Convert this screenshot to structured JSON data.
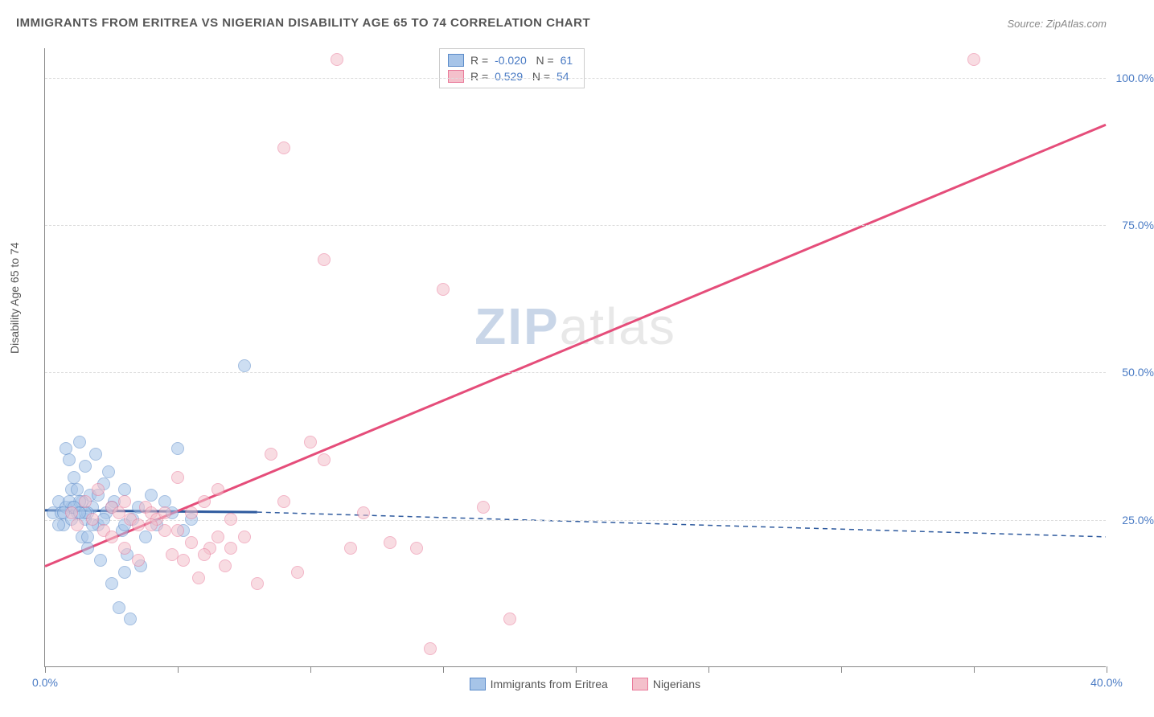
{
  "title": "IMMIGRANTS FROM ERITREA VS NIGERIAN DISABILITY AGE 65 TO 74 CORRELATION CHART",
  "source": "Source: ZipAtlas.com",
  "y_axis_label": "Disability Age 65 to 74",
  "watermark": {
    "part1": "ZIP",
    "part2": "atlas"
  },
  "chart": {
    "type": "scatter",
    "background_color": "#ffffff",
    "grid_color": "#dddddd",
    "axis_color": "#888888",
    "xlim": [
      0,
      40
    ],
    "ylim": [
      0,
      105
    ],
    "xtick_positions": [
      0,
      5,
      10,
      15,
      20,
      25,
      30,
      35,
      40
    ],
    "xtick_labels": {
      "0": "0.0%",
      "40": "40.0%"
    },
    "ytick_positions": [
      25,
      50,
      75,
      100
    ],
    "ytick_labels": {
      "25": "25.0%",
      "50": "50.0%",
      "75": "75.0%",
      "100": "100.0%"
    },
    "tick_label_color": "#4a7bc4",
    "marker_radius": 8,
    "marker_opacity": 0.55,
    "series": [
      {
        "name": "Immigrants from Eritrea",
        "fill_color": "#a6c4e8",
        "stroke_color": "#5b8bc9",
        "line_color": "#2e5a9e",
        "r_value": "-0.020",
        "n_value": "61",
        "trend": {
          "x1": 0,
          "y1": 26.5,
          "x2": 8,
          "y2": 26.2,
          "solid_until_x": 8,
          "dash_to_x": 40,
          "dash_y2": 22
        },
        "points": [
          [
            0.3,
            26
          ],
          [
            0.5,
            28
          ],
          [
            0.7,
            24
          ],
          [
            0.8,
            37
          ],
          [
            0.9,
            35
          ],
          [
            1.0,
            30
          ],
          [
            1.1,
            32
          ],
          [
            1.2,
            26
          ],
          [
            1.3,
            38
          ],
          [
            1.4,
            22
          ],
          [
            1.5,
            34
          ],
          [
            1.5,
            25
          ],
          [
            1.6,
            20
          ],
          [
            1.7,
            29
          ],
          [
            1.8,
            27
          ],
          [
            1.9,
            36
          ],
          [
            2.0,
            24
          ],
          [
            2.1,
            18
          ],
          [
            2.2,
            31
          ],
          [
            2.3,
            26
          ],
          [
            2.4,
            33
          ],
          [
            2.5,
            14
          ],
          [
            2.6,
            28
          ],
          [
            2.8,
            10
          ],
          [
            2.9,
            23
          ],
          [
            3.0,
            30
          ],
          [
            3.1,
            19
          ],
          [
            3.2,
            8
          ],
          [
            3.3,
            25
          ],
          [
            3.5,
            27
          ],
          [
            3.6,
            17
          ],
          [
            3.8,
            22
          ],
          [
            4.0,
            29
          ],
          [
            4.2,
            24
          ],
          [
            4.5,
            28
          ],
          [
            4.8,
            26
          ],
          [
            5.0,
            37
          ],
          [
            5.2,
            23
          ],
          [
            5.5,
            25
          ],
          [
            1.0,
            27
          ],
          [
            1.2,
            30
          ],
          [
            1.4,
            28
          ],
          [
            1.6,
            26
          ],
          [
            1.8,
            24
          ],
          [
            2.0,
            29
          ],
          [
            0.6,
            26
          ],
          [
            0.8,
            27
          ],
          [
            1.0,
            25
          ],
          [
            1.3,
            28
          ],
          [
            1.5,
            26
          ],
          [
            0.5,
            24
          ],
          [
            0.7,
            26
          ],
          [
            0.9,
            28
          ],
          [
            1.1,
            27
          ],
          [
            1.3,
            26
          ],
          [
            1.6,
            22
          ],
          [
            2.2,
            25
          ],
          [
            2.5,
            27
          ],
          [
            3.0,
            24
          ],
          [
            3.0,
            16
          ],
          [
            7.5,
            51
          ]
        ]
      },
      {
        "name": "Nigerians",
        "fill_color": "#f4c0cb",
        "stroke_color": "#e97a9a",
        "line_color": "#e54d7a",
        "r_value": "0.529",
        "n_value": "54",
        "trend": {
          "x1": 0,
          "y1": 17,
          "x2": 40,
          "y2": 92,
          "solid_until_x": 40
        },
        "points": [
          [
            1.0,
            26
          ],
          [
            1.2,
            24
          ],
          [
            1.5,
            28
          ],
          [
            1.8,
            25
          ],
          [
            2.0,
            30
          ],
          [
            2.2,
            23
          ],
          [
            2.5,
            27
          ],
          [
            2.8,
            26
          ],
          [
            3.0,
            28
          ],
          [
            3.2,
            25
          ],
          [
            3.5,
            24
          ],
          [
            3.8,
            27
          ],
          [
            4.0,
            26
          ],
          [
            4.2,
            25
          ],
          [
            4.5,
            23
          ],
          [
            4.8,
            19
          ],
          [
            5.0,
            32
          ],
          [
            5.2,
            18
          ],
          [
            5.5,
            26
          ],
          [
            5.8,
            15
          ],
          [
            6.0,
            28
          ],
          [
            6.2,
            20
          ],
          [
            6.5,
            30
          ],
          [
            6.8,
            17
          ],
          [
            7.0,
            25
          ],
          [
            7.5,
            22
          ],
          [
            8.0,
            14
          ],
          [
            8.5,
            36
          ],
          [
            9.0,
            28
          ],
          [
            9.5,
            16
          ],
          [
            10.0,
            38
          ],
          [
            10.5,
            35
          ],
          [
            11.0,
            103
          ],
          [
            11.5,
            20
          ],
          [
            12.0,
            26
          ],
          [
            13.0,
            21
          ],
          [
            14.0,
            20
          ],
          [
            14.5,
            3
          ],
          [
            15.0,
            64
          ],
          [
            16.5,
            27
          ],
          [
            17.5,
            8
          ],
          [
            9.0,
            88
          ],
          [
            10.5,
            69
          ],
          [
            35.0,
            103
          ],
          [
            2.5,
            22
          ],
          [
            3.0,
            20
          ],
          [
            3.5,
            18
          ],
          [
            4.0,
            24
          ],
          [
            4.5,
            26
          ],
          [
            5.0,
            23
          ],
          [
            5.5,
            21
          ],
          [
            6.0,
            19
          ],
          [
            6.5,
            22
          ],
          [
            7.0,
            20
          ]
        ]
      }
    ]
  }
}
